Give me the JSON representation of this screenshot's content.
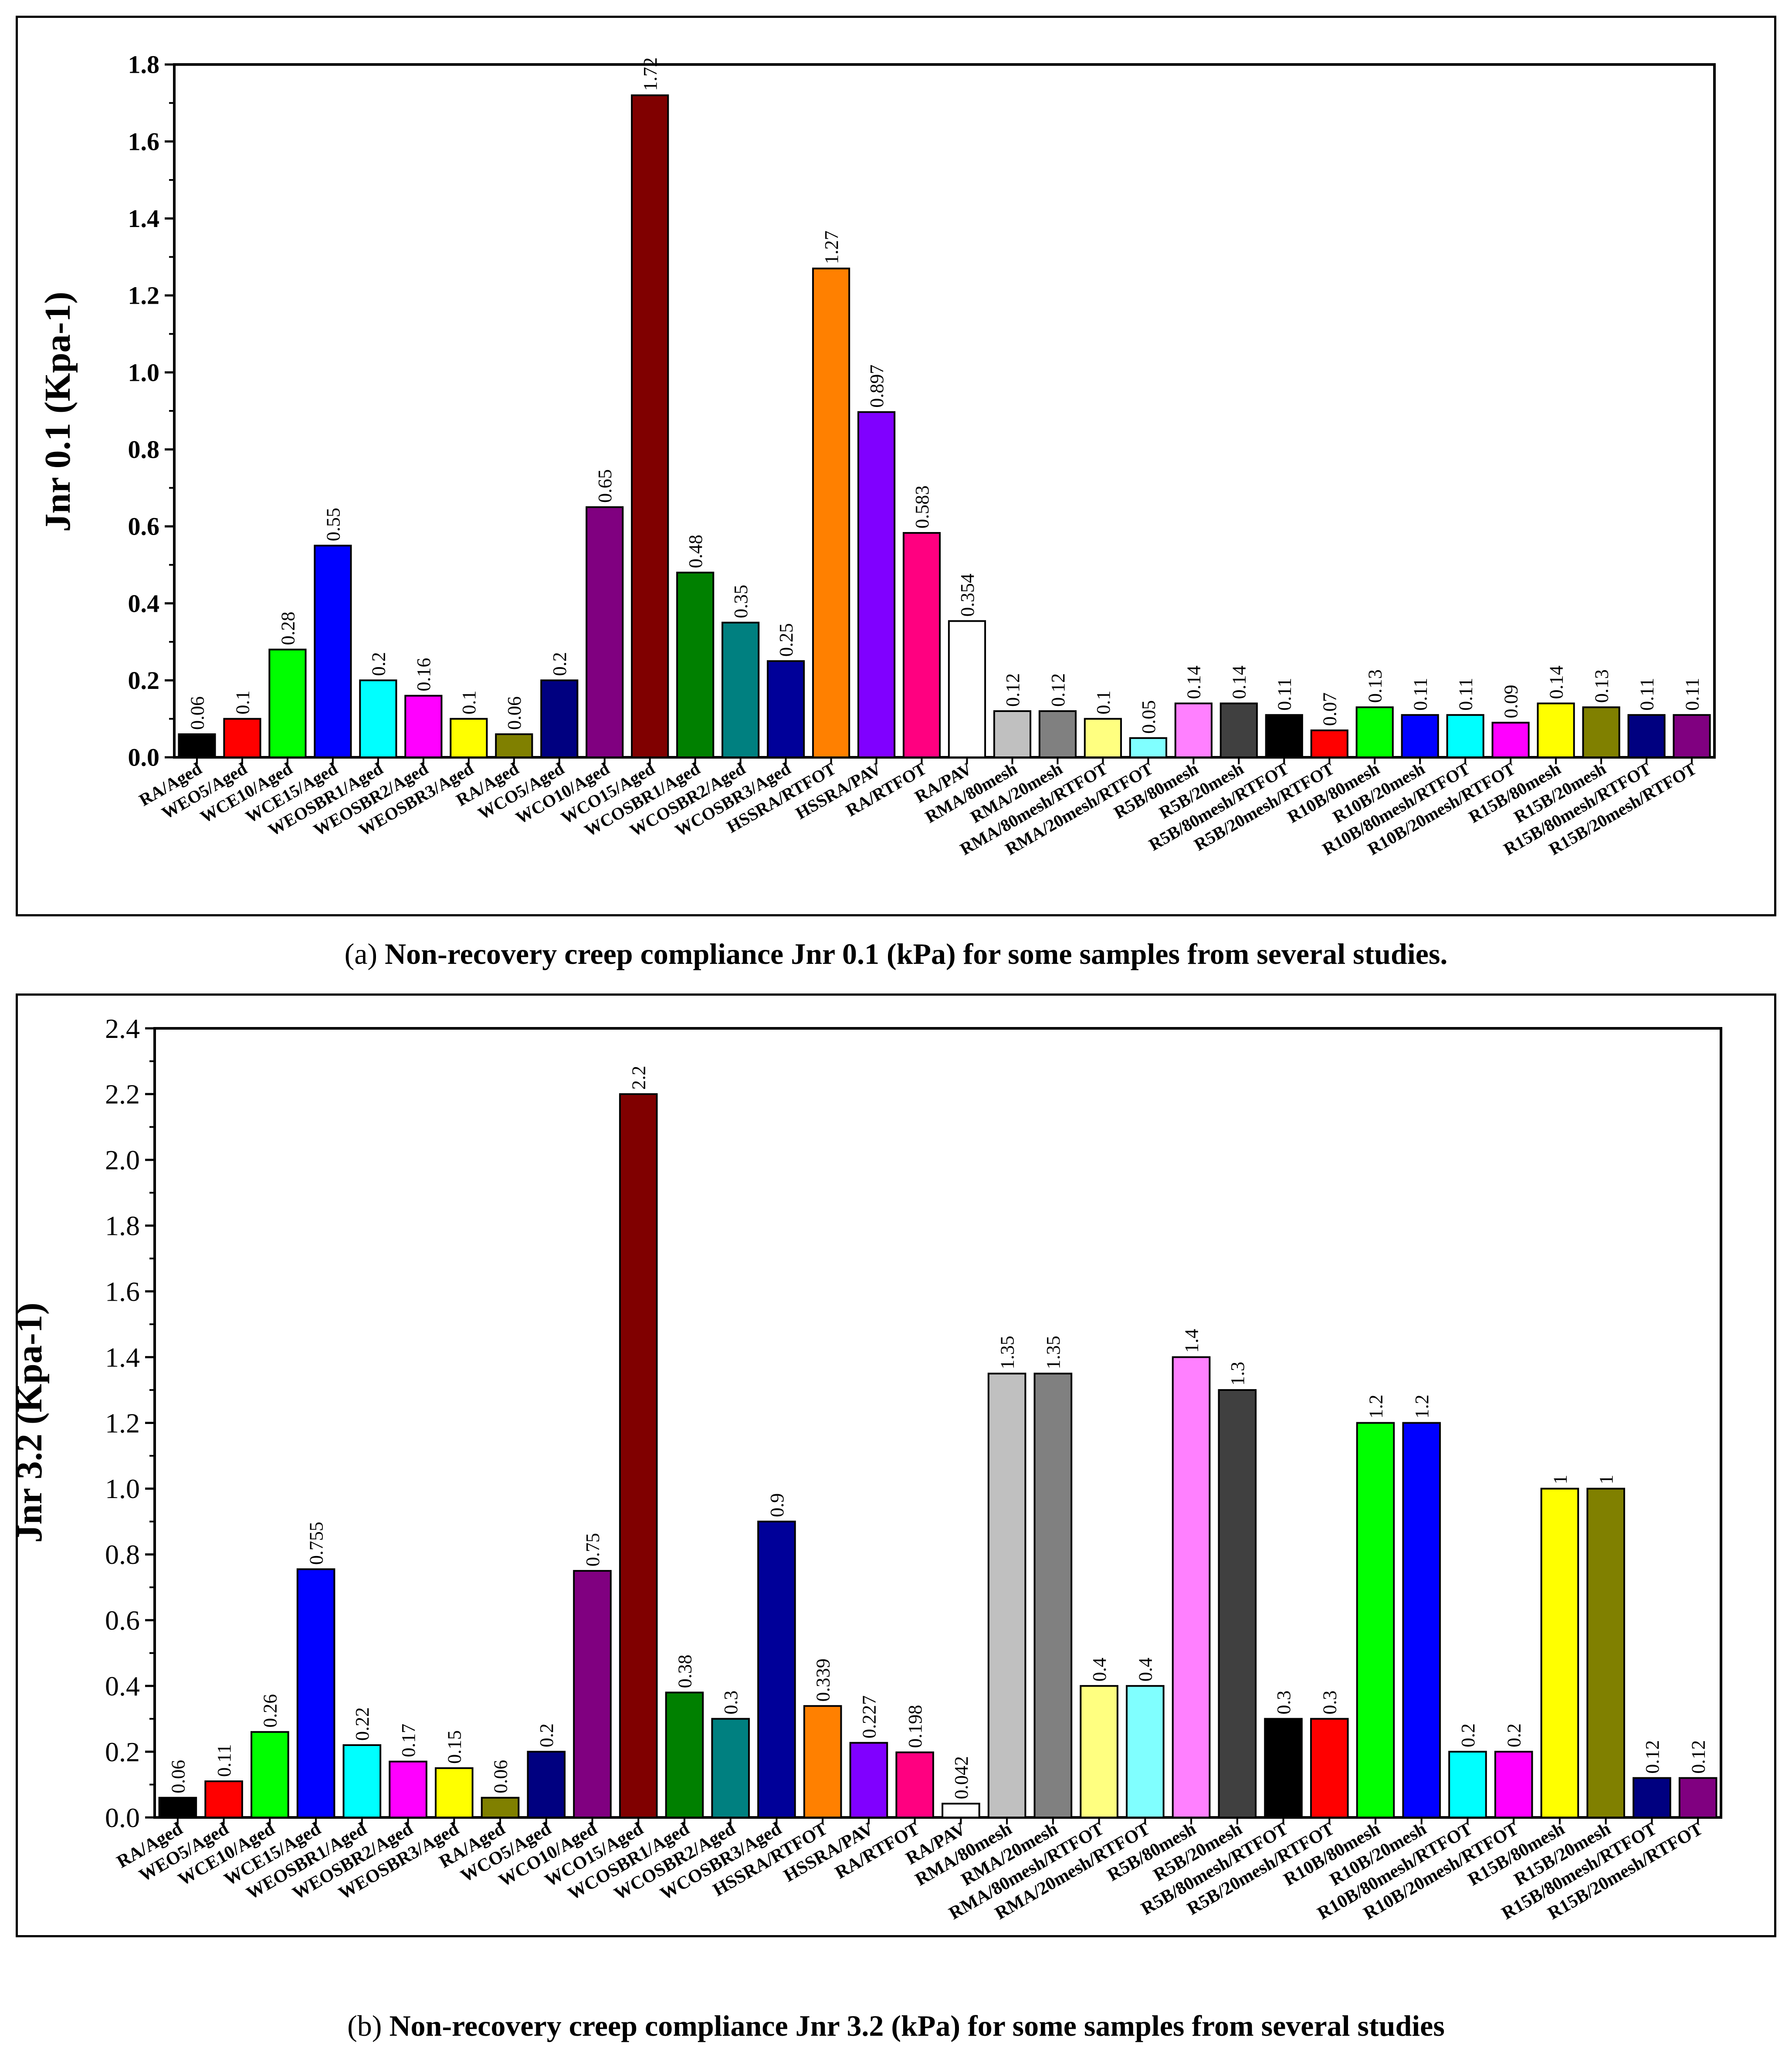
{
  "chart_data": [
    {
      "id": "a",
      "type": "bar",
      "title": "",
      "xlabel": "",
      "ylabel": "Jnr 0.1 (Kpa-1)",
      "ylim": [
        0,
        1.8
      ],
      "yticks": [
        "0.0",
        "0.2",
        "0.4",
        "0.6",
        "0.8",
        "1.0",
        "1.2",
        "1.4",
        "1.6",
        "1.8"
      ],
      "ytick_values": [
        0,
        0.2,
        0.4,
        0.6,
        0.8,
        1.0,
        1.2,
        1.4,
        1.6,
        1.8
      ],
      "grid": false,
      "caption_label": "(a)",
      "caption_text": "Non-recovery creep compliance Jnr 0.1 (kPa) for some samples from several studies.",
      "categories": [
        "RA/Aged",
        "WEO5/Aged",
        "WCE10/Aged",
        "WCE15/Aged",
        "WEOSBR1/Aged",
        "WEOSBR2/Aged",
        "WEOSBR3/Aged",
        "RA/Aged",
        "WCO5/Aged",
        "WCO10/Aged",
        "WCO15/Aged",
        "WCOSBR1/Aged",
        "WCOSBR2/Aged",
        "WCOSBR3/Aged",
        "HSSRA/RTFOT",
        "HSSRA/PAV",
        "RA/RTFOT",
        "RA/PAV",
        "RMA/80mesh",
        "RMA/20mesh",
        "RMA/80mesh/RTFOT",
        "RMA/20mesh/RTFOT",
        "R5B/80mesh",
        "R5B/20mesh",
        "R5B/80mesh/RTFOT",
        "R5B/20mesh/RTFOT",
        "R10B/80mesh",
        "R10B/20mesh",
        "R10B/80mesh/RTFOT",
        "R10B/20mesh/RTFOT",
        "R15B/80mesh",
        "R15B/20mesh",
        "R15B/80mesh/RTFOT",
        "R15B/20mesh/RTFOT"
      ],
      "values": [
        0.06,
        0.1,
        0.28,
        0.55,
        0.2,
        0.16,
        0.1,
        0.06,
        0.2,
        0.65,
        1.72,
        0.48,
        0.35,
        0.25,
        1.27,
        0.897,
        0.583,
        0.354,
        0.12,
        0.12,
        0.1,
        0.05,
        0.14,
        0.14,
        0.11,
        0.07,
        0.13,
        0.11,
        0.11,
        0.09,
        0.14,
        0.13,
        0.11,
        0.11
      ],
      "labels": [
        "0.06",
        "0.1",
        "0.28",
        "0.55",
        "0.2",
        "0.16",
        "0.1",
        "0.06",
        "0.2",
        "0.65",
        "1.72",
        "0.48",
        "0.35",
        "0.25",
        "1.27",
        "0.897",
        "0.583",
        "0.354",
        "0.12",
        "0.12",
        "0.1",
        "0.05",
        "0.14",
        "0.14",
        "0.11",
        "0.07",
        "0.13",
        "0.11",
        "0.11",
        "0.09",
        "0.14",
        "0.13",
        "0.11",
        "0.11"
      ],
      "colors": [
        "#000000",
        "#FF0000",
        "#00FF00",
        "#0000FF",
        "#00FFFF",
        "#FF00FF",
        "#FFFF00",
        "#808000",
        "#000080",
        "#800080",
        "#800000",
        "#008000",
        "#008080",
        "#000099",
        "#FF8000",
        "#8000FF",
        "#FF0080",
        "#FFFFFF",
        "#C0C0C0",
        "#808080",
        "#FFFF80",
        "#80FFFF",
        "#FF80FF",
        "#404040",
        "#000000",
        "#FF0000",
        "#00FF00",
        "#0000FF",
        "#00FFFF",
        "#FF00FF",
        "#FFFF00",
        "#808000",
        "#000080",
        "#800080"
      ]
    },
    {
      "id": "b",
      "type": "bar",
      "title": "",
      "xlabel": "",
      "ylabel": "Jnr 3.2 (Kpa-1)",
      "ylim": [
        0,
        2.4
      ],
      "yticks": [
        "0.0",
        "0.2",
        "0.4",
        "0.6",
        "0.8",
        "1.0",
        "1.2",
        "1.4",
        "1.6",
        "1.8",
        "2.0",
        "2.2",
        "2.4"
      ],
      "ytick_values": [
        0,
        0.2,
        0.4,
        0.6,
        0.8,
        1.0,
        1.2,
        1.4,
        1.6,
        1.8,
        2.0,
        2.2,
        2.4
      ],
      "grid": false,
      "caption_label": "(b)",
      "caption_text": "Non-recovery creep compliance Jnr 3.2 (kPa) for some samples from several studies",
      "categories": [
        "RA/Aged",
        "WEO5/Aged",
        "WCE10/Aged",
        "WCE15/Aged",
        "WEOSBR1/Aged",
        "WEOSBR2/Aged",
        "WEOSBR3/Aged",
        "RA/Aged",
        "WCO5/Aged",
        "WCO10/Aged",
        "WCO15/Aged",
        "WCOSBR1/Aged",
        "WCOSBR2/Aged",
        "WCOSBR3/Aged",
        "HSSRA/RTFOT",
        "HSSRA/PAV",
        "RA/RTFOT",
        "RA/PAV",
        "RMA/80mesh",
        "RMA/20mesh",
        "RMA/80mesh/RTFOT",
        "RMA/20mesh/RTFOT",
        "R5B/80mesh",
        "R5B/20mesh",
        "R5B/80mesh/RTFOT",
        "R5B/20mesh/RTFOT",
        "R10B/80mesh",
        "R10B/20mesh",
        "R10B/80mesh/RTFOT",
        "R10B/20mesh/RTFOT",
        "R15B/80mesh",
        "R15B/20mesh",
        "R15B/80mesh/RTFOT",
        "R15B/20mesh/RTFOT"
      ],
      "values": [
        0.06,
        0.11,
        0.26,
        0.755,
        0.22,
        0.17,
        0.15,
        0.06,
        0.2,
        0.75,
        2.2,
        0.38,
        0.3,
        0.9,
        0.339,
        0.227,
        0.198,
        0.042,
        1.35,
        1.35,
        0.4,
        0.4,
        1.4,
        1.3,
        0.3,
        0.3,
        1.2,
        1.2,
        0.2,
        0.2,
        1.0,
        1.0,
        0.12,
        0.12
      ],
      "labels": [
        "0.06",
        "0.11",
        "0.26",
        "0.755",
        "0.22",
        "0.17",
        "0.15",
        "0.06",
        "0.2",
        "0.75",
        "2.2",
        "0.38",
        "0.3",
        "0.9",
        "0.339",
        "0.227",
        "0.198",
        "0.042",
        "1.35",
        "1.35",
        "0.4",
        "0.4",
        "1.4",
        "1.3",
        "0.3",
        "0.3",
        "1.2",
        "1.2",
        "0.2",
        "0.2",
        "1",
        "1",
        "0.12",
        "0.12"
      ],
      "colors": [
        "#000000",
        "#FF0000",
        "#00FF00",
        "#0000FF",
        "#00FFFF",
        "#FF00FF",
        "#FFFF00",
        "#808000",
        "#000080",
        "#800080",
        "#800000",
        "#008000",
        "#008080",
        "#000099",
        "#FF8000",
        "#8000FF",
        "#FF0080",
        "#FFFFFF",
        "#C0C0C0",
        "#808080",
        "#FFFF80",
        "#80FFFF",
        "#FF80FF",
        "#404040",
        "#000000",
        "#FF0000",
        "#00FF00",
        "#0000FF",
        "#00FFFF",
        "#FF00FF",
        "#FFFF00",
        "#808000",
        "#000080",
        "#800080"
      ]
    }
  ]
}
